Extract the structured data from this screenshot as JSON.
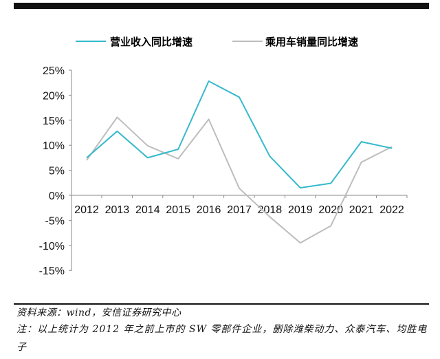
{
  "chart_data": {
    "type": "line",
    "categories": [
      "2012",
      "2013",
      "2014",
      "2015",
      "2016",
      "2017",
      "2018",
      "2019",
      "2020",
      "2021",
      "2022"
    ],
    "series": [
      {
        "name": "营业收入同比增速",
        "color": "#35b9cc",
        "values": [
          7.5,
          12.8,
          7.5,
          9.2,
          22.8,
          19.6,
          7.8,
          1.5,
          2.4,
          10.7,
          9.4
        ]
      },
      {
        "name": "乘用车销量同比增速",
        "color": "#bdbdbd",
        "values": [
          7.0,
          15.6,
          9.9,
          7.3,
          15.2,
          1.4,
          -4.3,
          -9.5,
          -6.1,
          6.6,
          9.7
        ]
      }
    ],
    "y_ticks": [
      "25%",
      "20%",
      "15%",
      "10%",
      "5%",
      "0%",
      "-5%",
      "-10%",
      "-15%"
    ],
    "ylim": [
      -15,
      25
    ],
    "legend_position": "top",
    "grid": false
  },
  "footer": {
    "source": "资料来源：wind，安信证券研究中心",
    "note": "注：以上统计为 2012 年之前上市的 SW 零部件企业，删除潍柴动力、众泰汽车、均胜电子"
  }
}
